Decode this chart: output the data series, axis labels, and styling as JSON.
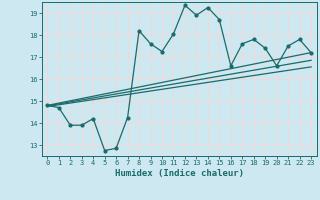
{
  "xlabel": "Humidex (Indice chaleur)",
  "bg_color": "#cde8f0",
  "grid_color": "#f0d8d8",
  "line_color": "#1a6b6b",
  "xlim": [
    -0.5,
    23.5
  ],
  "ylim": [
    12.5,
    19.5
  ],
  "xticks": [
    0,
    1,
    2,
    3,
    4,
    5,
    6,
    7,
    8,
    9,
    10,
    11,
    12,
    13,
    14,
    15,
    16,
    17,
    18,
    19,
    20,
    21,
    22,
    23
  ],
  "yticks": [
    13,
    14,
    15,
    16,
    17,
    18,
    19
  ],
  "series1_x": [
    0,
    1,
    2,
    3,
    4,
    5,
    6,
    7,
    8,
    9,
    10,
    11,
    12,
    13,
    14,
    15,
    16,
    17,
    18,
    19,
    20,
    21,
    22,
    23
  ],
  "series1_y": [
    14.8,
    14.7,
    13.9,
    13.9,
    14.2,
    12.75,
    12.85,
    14.25,
    18.2,
    17.6,
    17.25,
    18.05,
    19.35,
    18.9,
    19.25,
    18.7,
    16.6,
    17.6,
    17.8,
    17.4,
    16.6,
    17.5,
    17.8,
    17.2
  ],
  "trend1_x": [
    0,
    23
  ],
  "trend1_y": [
    14.8,
    17.2
  ],
  "trend2_x": [
    0,
    23
  ],
  "trend2_y": [
    14.75,
    16.55
  ],
  "trend3_x": [
    0,
    23
  ],
  "trend3_y": [
    14.78,
    16.85
  ]
}
